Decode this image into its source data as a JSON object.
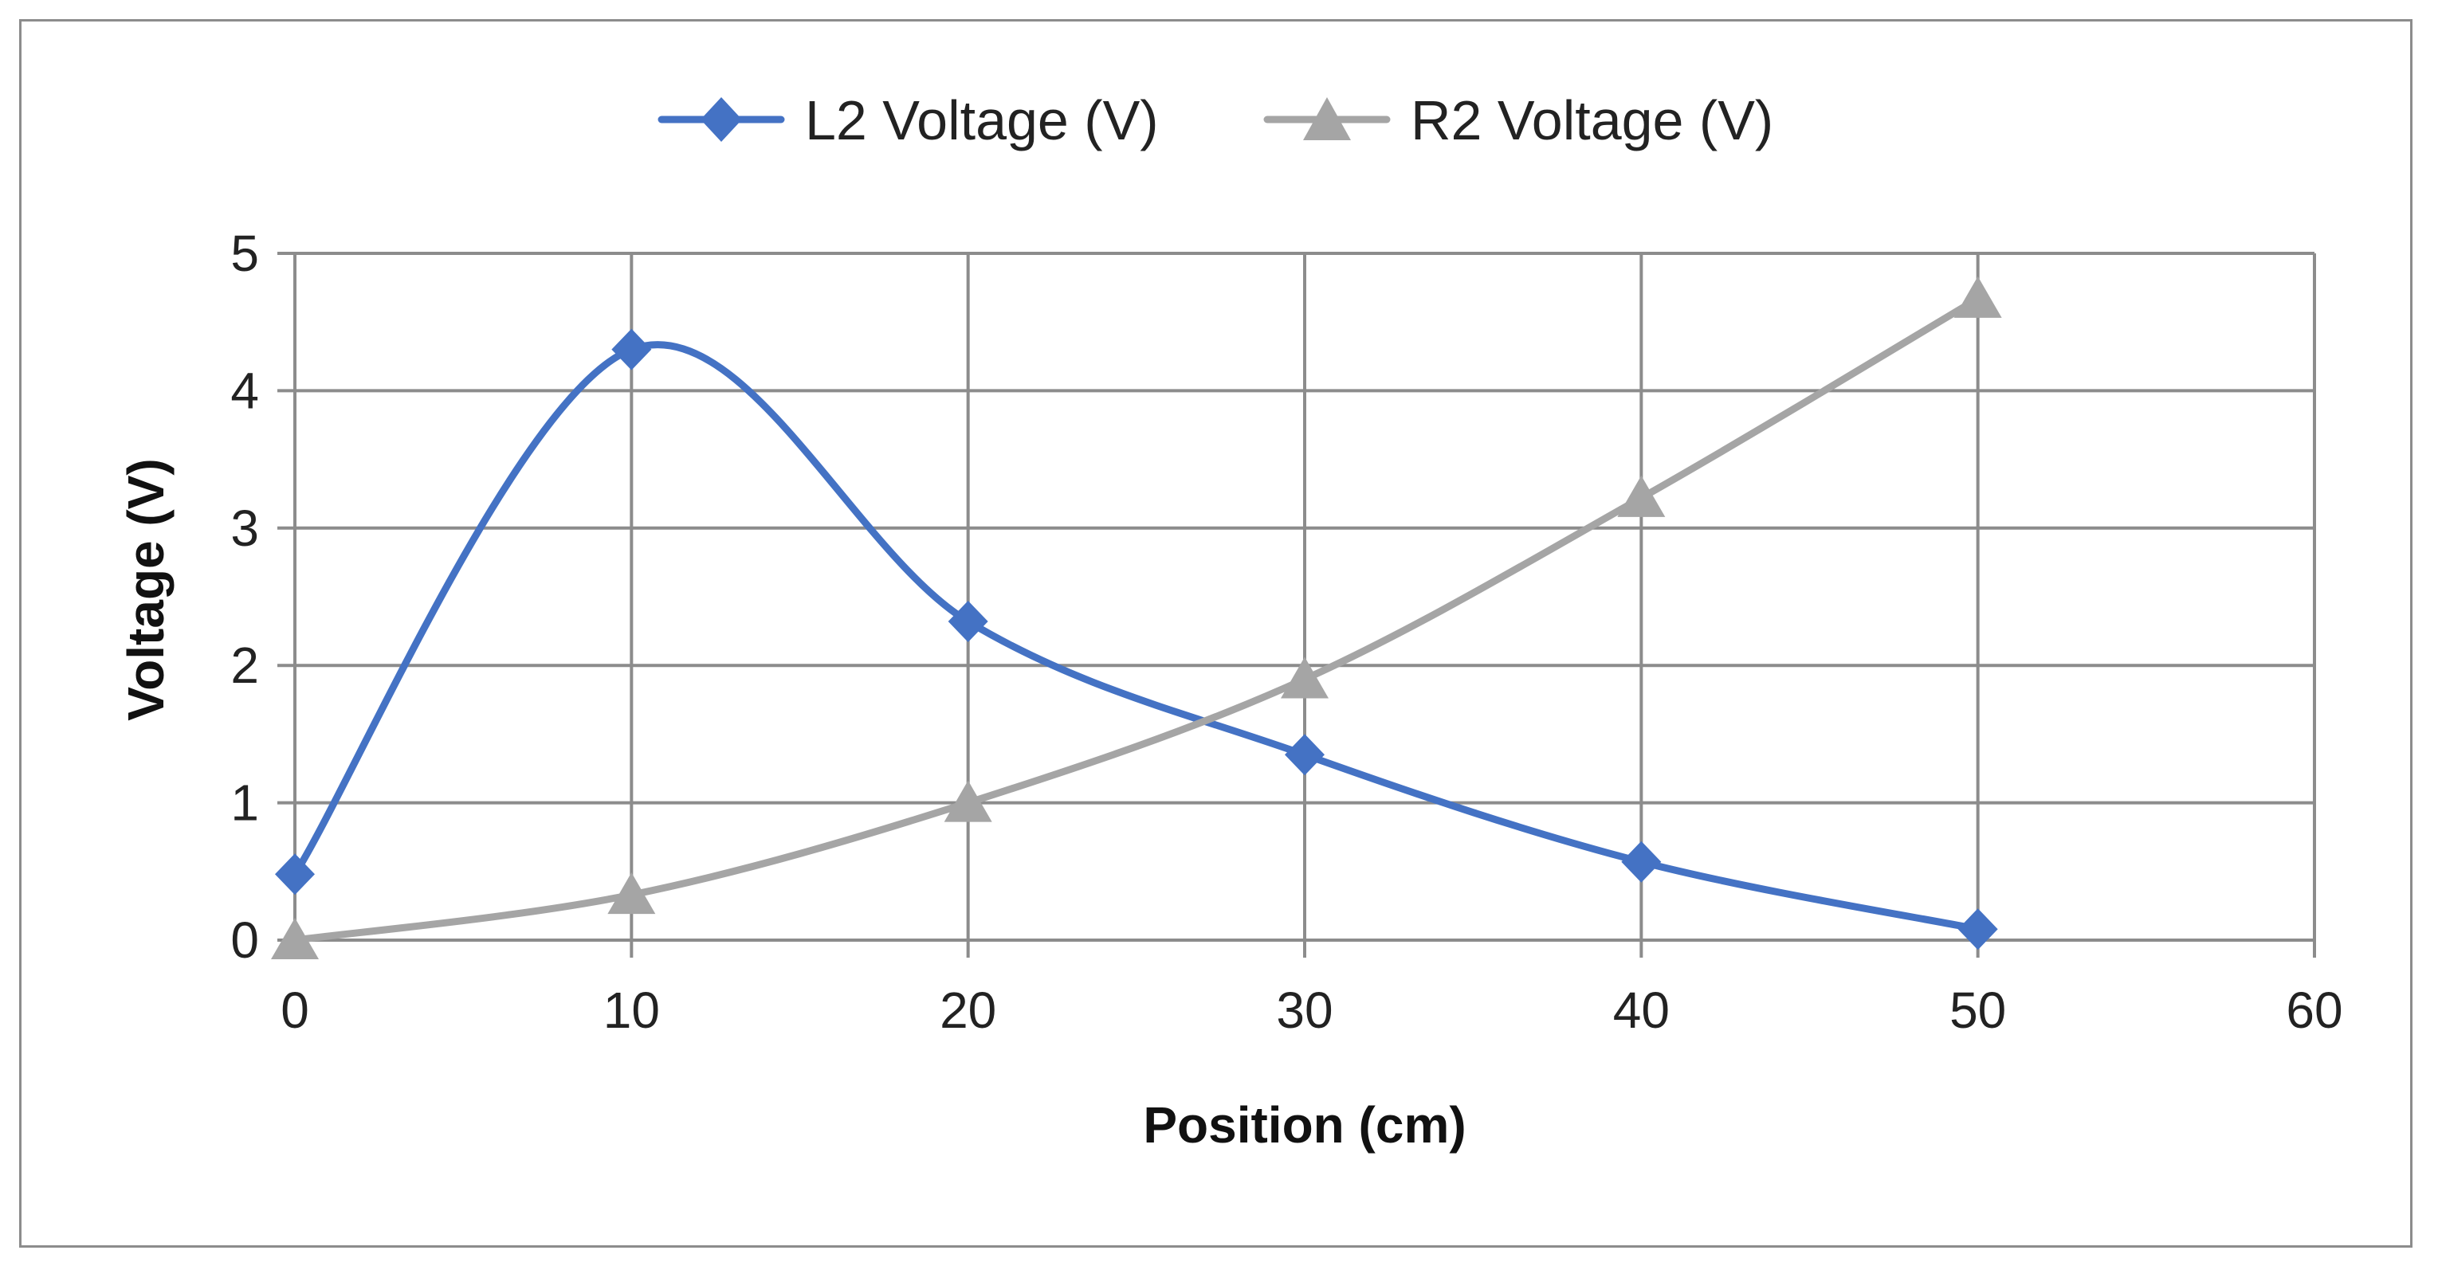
{
  "chart_data": {
    "type": "line",
    "smooth": true,
    "title": "",
    "xlabel": "Position (cm)",
    "ylabel": "Voltage (V)",
    "xlim": [
      0,
      60
    ],
    "ylim": [
      0,
      5
    ],
    "xticks": [
      0,
      10,
      20,
      30,
      40,
      50,
      60
    ],
    "yticks": [
      0,
      1,
      2,
      3,
      4,
      5
    ],
    "grid": true,
    "legend_position": "top",
    "series": [
      {
        "name": "L2 Voltage (V)",
        "color": "#4472c4",
        "marker": "diamond",
        "x": [
          0,
          10,
          20,
          30,
          40,
          50
        ],
        "y": [
          0.48,
          4.3,
          2.32,
          1.35,
          0.57,
          0.08
        ]
      },
      {
        "name": "R2 Voltage (V)",
        "color": "#a5a5a5",
        "marker": "triangle",
        "x": [
          0,
          10,
          20,
          30,
          40,
          50
        ],
        "y": [
          0.0,
          0.33,
          1.0,
          1.9,
          3.22,
          4.67
        ]
      }
    ]
  }
}
